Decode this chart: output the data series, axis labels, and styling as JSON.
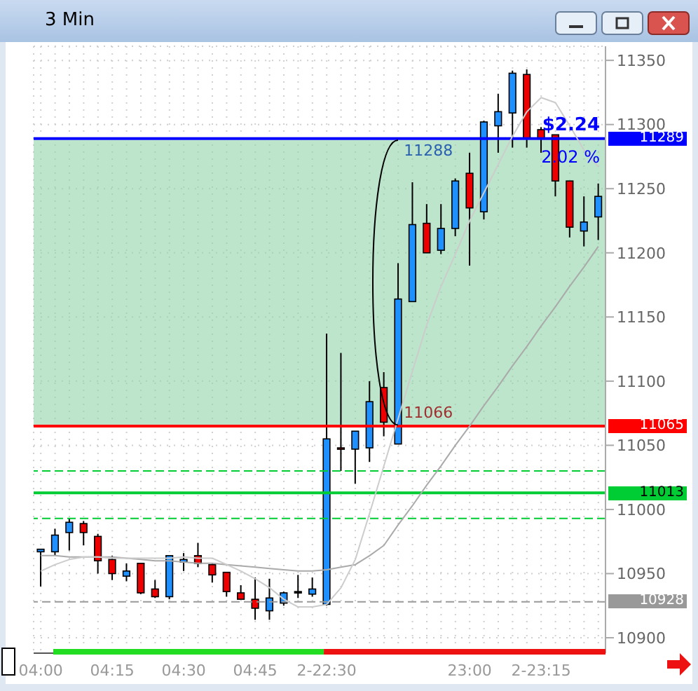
{
  "chart_data": {
    "type": "candlestick",
    "title": "3 Min",
    "categories": [
      "04:00",
      null,
      null,
      null,
      null,
      "04:15",
      null,
      null,
      null,
      null,
      "04:30",
      null,
      null,
      null,
      null,
      "04:45",
      null,
      null,
      null,
      null,
      "2-22:30",
      null,
      null,
      null,
      null,
      null,
      null,
      null,
      null,
      null,
      "23:00",
      null,
      null,
      null,
      null,
      "2-23:15",
      null,
      null,
      null,
      null
    ],
    "series": [
      {
        "type": "line",
        "color": "#aaaaaa",
        "values": [
          10964,
          10964,
          10963,
          10963,
          10963,
          10963,
          10962,
          10961,
          10960,
          10960,
          10959,
          10958,
          10958,
          10957,
          10956,
          10955,
          10954,
          10953,
          10952,
          10952,
          10953,
          10955,
          10957,
          10964,
          10972,
          10988,
          11003,
          11019,
          11034,
          11050,
          11065,
          11081,
          11096,
          11112,
          11127,
          11143,
          11158,
          11174,
          11189,
          11205
        ]
      },
      {
        "type": "line",
        "color": "#cccccc",
        "values": [
          10952,
          10957,
          10961,
          10963,
          10963,
          10962,
          10962,
          10962,
          10962,
          10962,
          10963,
          10962,
          10962,
          10957,
          10952,
          10946,
          10939,
          10930,
          10924,
          10924,
          10926,
          10939,
          10961,
          10997,
          11034,
          11071,
          11108,
          11144,
          11174,
          11199,
          11225,
          11247,
          11269,
          11291,
          11310,
          11321,
          11317,
          11299,
          11280,
          11267
        ]
      },
      {
        "type": "candlestick",
        "ohlc": [
          [
            10967,
            10969,
            10940,
            10969
          ],
          [
            10967,
            10985,
            10964,
            10980
          ],
          [
            10982,
            10993,
            10968,
            10990
          ],
          [
            10989,
            10991,
            10972,
            10982
          ],
          [
            10979,
            10981,
            10950,
            10960
          ],
          [
            10961,
            10964,
            10945,
            10950
          ],
          [
            10948,
            10958,
            10944,
            10952
          ],
          [
            10958,
            10958,
            10934,
            10935
          ],
          [
            10938,
            10945,
            10931,
            10932
          ],
          [
            10932,
            10964,
            10930,
            10964
          ],
          [
            10959,
            10966,
            10952,
            10961
          ],
          [
            10964,
            10974,
            10955,
            10958
          ],
          [
            10957,
            10958,
            10943,
            10949
          ],
          [
            10951,
            10951,
            10932,
            10936
          ],
          [
            10935,
            10941,
            10930,
            10930
          ],
          [
            10930,
            10947,
            10914,
            10923
          ],
          [
            10921,
            10946,
            10914,
            10931
          ],
          [
            10927,
            10936,
            10925,
            10935
          ],
          [
            10936,
            10949,
            10931,
            10936
          ],
          [
            10934,
            10947,
            10932,
            10938
          ],
          [
            10926,
            11137,
            10925,
            11055
          ],
          [
            11048,
            11122,
            11030,
            11047
          ],
          [
            11047,
            11061,
            11020,
            11061
          ],
          [
            11048,
            11100,
            11037,
            11084
          ],
          [
            11095,
            11107,
            11057,
            11068
          ],
          [
            11051,
            11192,
            11051,
            11164
          ],
          [
            11162,
            11255,
            11162,
            11222
          ],
          [
            11223,
            11238,
            11200,
            11200
          ],
          [
            11202,
            11238,
            11199,
            11219
          ],
          [
            11219,
            11258,
            11213,
            11256
          ],
          [
            11262,
            11278,
            11190,
            11235
          ],
          [
            11232,
            11303,
            11226,
            11302
          ],
          [
            11299,
            11324,
            11278,
            11310
          ],
          [
            11309,
            11342,
            11282,
            11340
          ],
          [
            11339,
            11343,
            11282,
            11289
          ],
          [
            11296,
            11298,
            11278,
            11289
          ],
          [
            11292,
            11292,
            11244,
            11256
          ],
          [
            11256,
            11256,
            11212,
            11220
          ],
          [
            11217,
            11244,
            11205,
            11224
          ],
          [
            11228,
            11254,
            11210,
            11244
          ]
        ],
        "colors": [
          "#1e90ff",
          "#1e90ff",
          "#1e90ff",
          "#ee0000",
          "#ee0000",
          "#ee0000",
          "#1e90ff",
          "#ee0000",
          "#ee0000",
          "#1e90ff",
          "#1e90ff",
          "#ee0000",
          "#ee0000",
          "#ee0000",
          "#ee0000",
          "#ee0000",
          "#1e90ff",
          "#1e90ff",
          "#000000",
          "#1e90ff",
          "#1e90ff",
          "#ee0000",
          "#1e90ff",
          "#1e90ff",
          "#ee0000",
          "#1e90ff",
          "#1e90ff",
          "#ee0000",
          "#1e90ff",
          "#1e90ff",
          "#ee0000",
          "#1e90ff",
          "#1e90ff",
          "#1e90ff",
          "#ee0000",
          "#ee0000",
          "#ee0000",
          "#ee0000",
          "#1e90ff",
          "#1e90ff"
        ]
      }
    ],
    "ylim": [
      10888,
      11361
    ],
    "yticks": [
      10900,
      10950,
      11000,
      11050,
      11100,
      11150,
      11200,
      11250,
      11300,
      11350
    ],
    "grid": true,
    "marker": "none",
    "bands": [
      {
        "axis": "y",
        "from": 11066,
        "to": 11288,
        "color": "#8fd4a8"
      }
    ],
    "ref_lines": [
      {
        "axis": "y",
        "value": 11289,
        "label": "11289",
        "color": "#0000ff"
      },
      {
        "axis": "y",
        "value": 11065,
        "label": "11065",
        "color": "#ff0000"
      },
      {
        "axis": "y",
        "value": 11030,
        "color": "#00cc33",
        "line_style": "dashed"
      },
      {
        "axis": "y",
        "value": 11013,
        "label": "11013",
        "color": "#00cc33"
      },
      {
        "axis": "y",
        "value": 10993,
        "color": "#00cc33",
        "line_style": "dashed"
      },
      {
        "axis": "y",
        "value": 10928,
        "label": "10928",
        "color": "#999999",
        "line_style": "dashed"
      }
    ],
    "annotations": [
      "$2.24",
      "2.02 %",
      {
        "text": "11288",
        "y": 11288
      },
      {
        "text": "11066",
        "y": 11066
      }
    ]
  }
}
